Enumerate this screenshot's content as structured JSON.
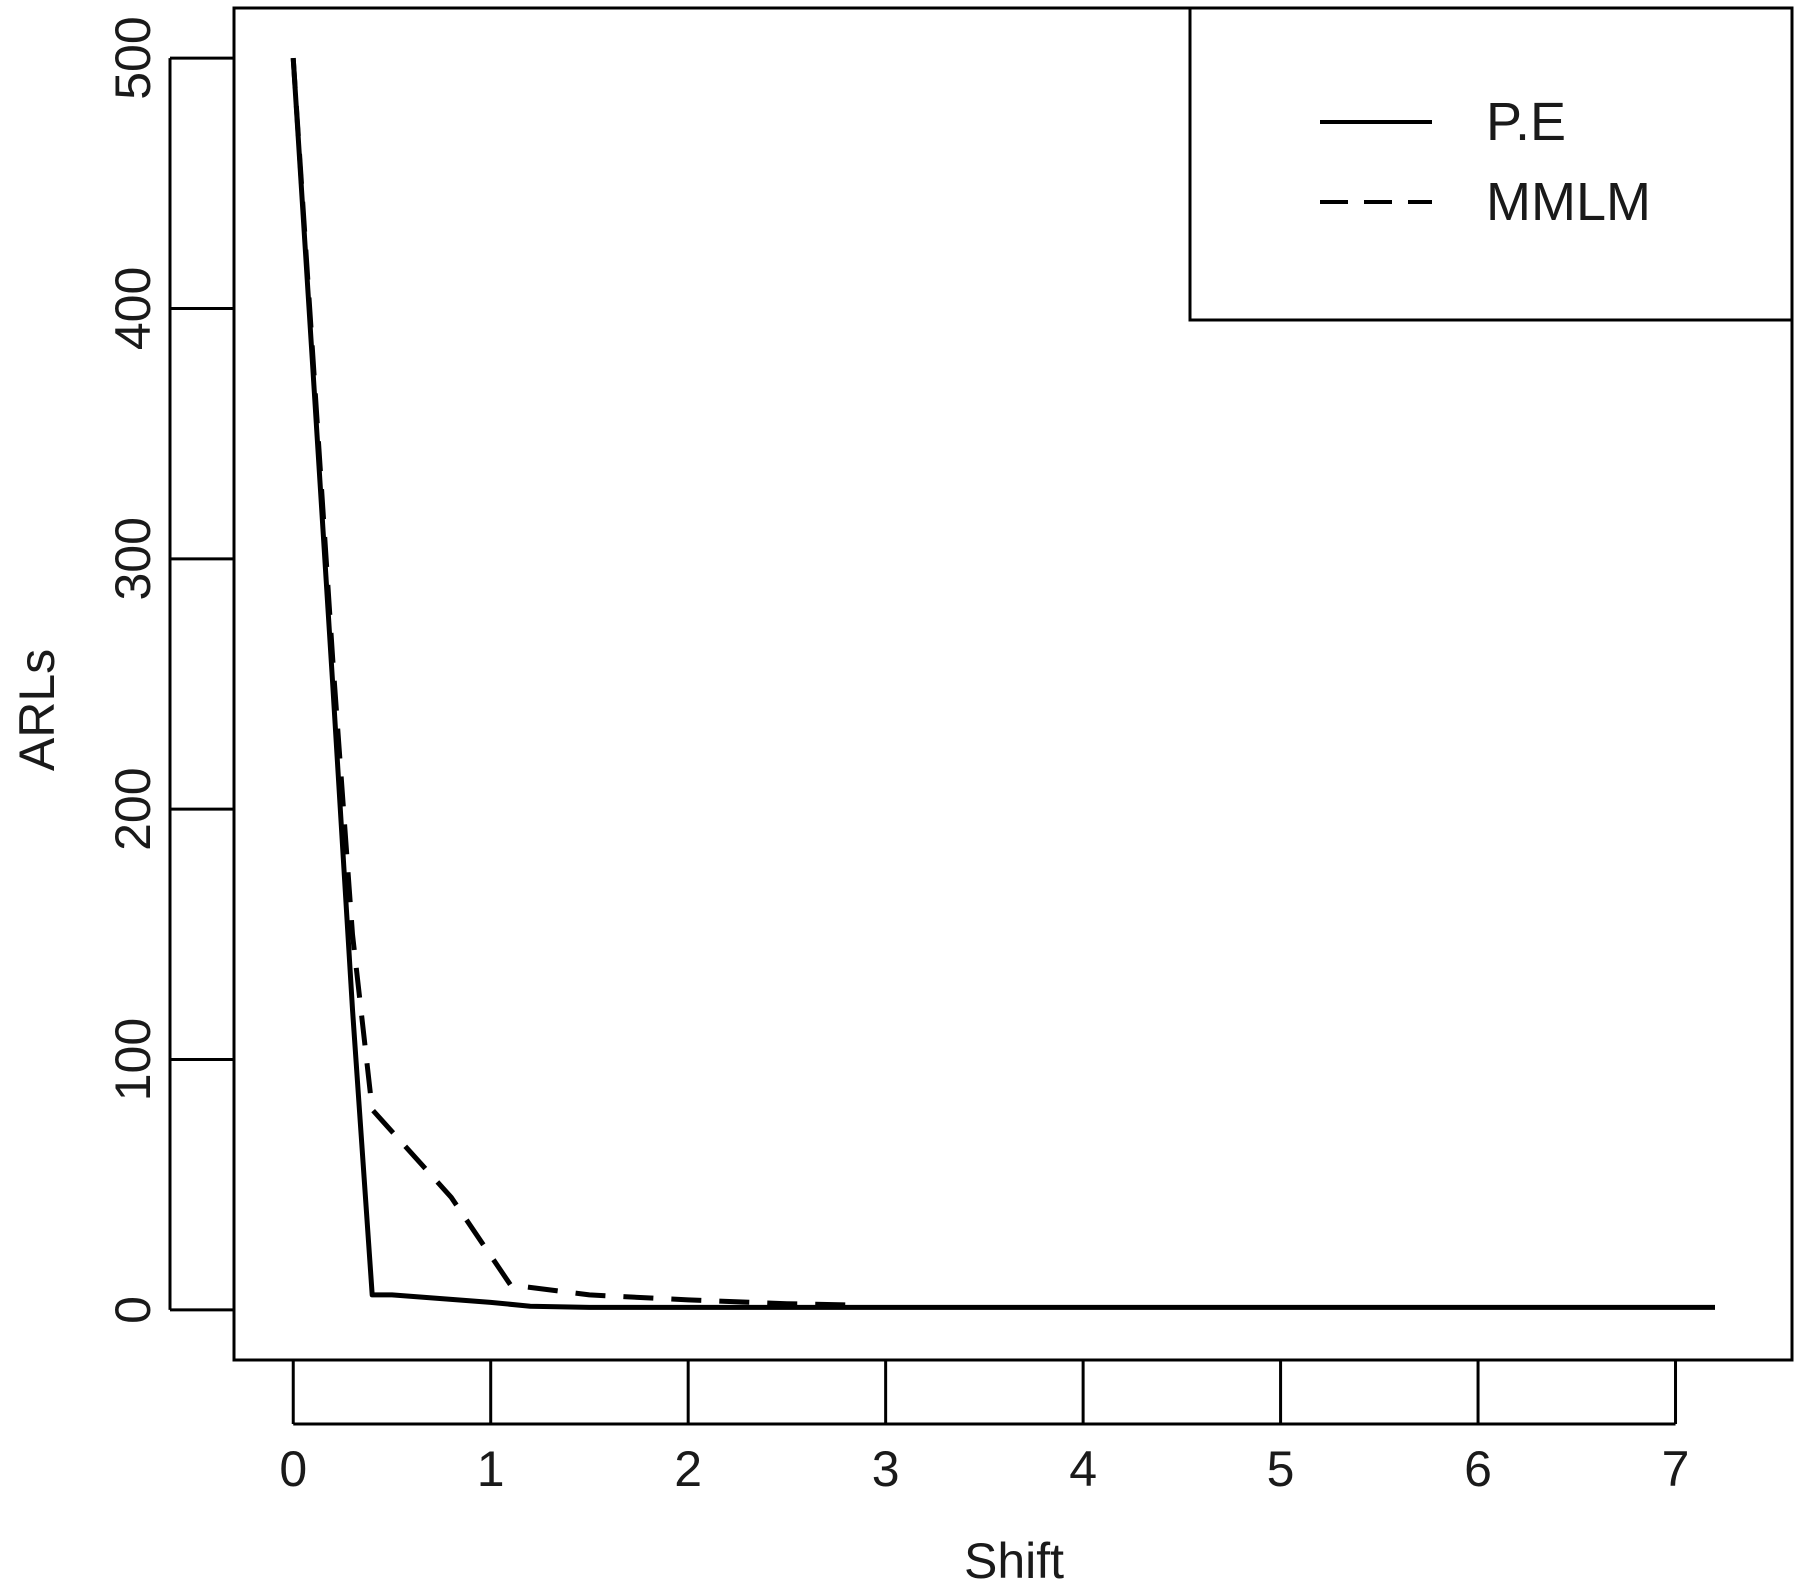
{
  "chart_data": {
    "type": "line",
    "title": "",
    "xlabel": "Shift",
    "ylabel": "ARLs",
    "xlim": [
      -0.3,
      7.6
    ],
    "ylim": [
      -20,
      520
    ],
    "xticks": [
      0,
      1,
      2,
      3,
      4,
      5,
      6,
      7
    ],
    "yticks": [
      0,
      100,
      200,
      300,
      400,
      500
    ],
    "xtick_labels": [
      "0",
      "1",
      "2",
      "3",
      "4",
      "5",
      "6",
      "7"
    ],
    "ytick_labels": [
      "0",
      "100",
      "200",
      "300",
      "400",
      "500"
    ],
    "grid": false,
    "legend_position": "top-right",
    "series": [
      {
        "name": "P.E",
        "line_style": "solid",
        "color": "#000000",
        "x": [
          0,
          0.1,
          0.2,
          0.3,
          0.4,
          0.5,
          1.0,
          1.2,
          1.5,
          2.0,
          3.0,
          4.0,
          5.0,
          6.0,
          7.0,
          7.2
        ],
        "y": [
          500,
          375,
          250,
          120,
          6,
          6,
          3,
          1.5,
          1,
          1,
          1,
          1,
          1,
          1,
          1,
          1
        ]
      },
      {
        "name": "MMLM",
        "line_style": "dashed",
        "color": "#000000",
        "x": [
          0,
          0.1,
          0.2,
          0.3,
          0.4,
          0.8,
          1.1,
          1.5,
          2.0,
          2.5,
          2.8
        ],
        "y": [
          500,
          380,
          260,
          150,
          80,
          45,
          10,
          6,
          4,
          2.5,
          2
        ]
      }
    ]
  }
}
